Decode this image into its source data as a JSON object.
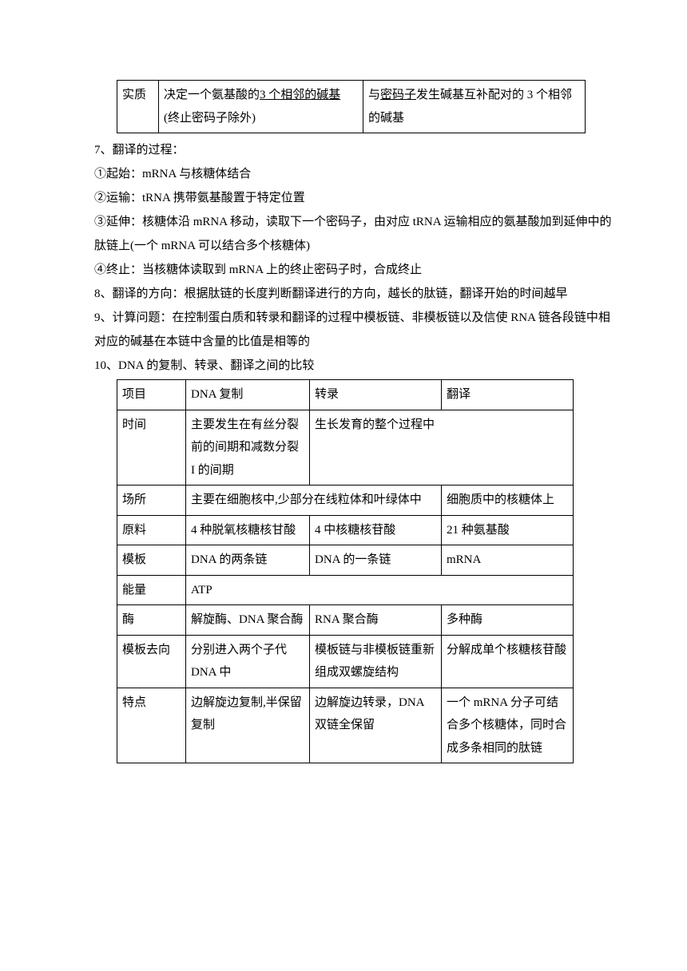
{
  "table1": {
    "col1": "实质",
    "col2_a": "决定一个氨基酸的",
    "col2_u": "3 个相邻的碱基",
    "col2_b": "(终止密码子除外)",
    "col3_a": "与",
    "col3_u": "密码子",
    "col3_b": "发生碱基互补配对的 3 个相邻的碱基"
  },
  "p7": "7、翻译的过程：",
  "p7_1": "①起始：mRNA 与核糖体结合",
  "p7_2": "②运输：tRNA 携带氨基酸置于特定位置",
  "p7_3": "③延伸：核糖体沿 mRNA 移动，读取下一个密码子，由对应 tRNA 运输相应的氨基酸加到延伸中的肽链上(一个 mRNA 可以结合多个核糖体)",
  "p7_4": "④终止：当核糖体读取到 mRNA 上的终止密码子时，合成终止",
  "p8": "8、翻译的方向：根据肽链的长度判断翻译进行的方向，越长的肽链，翻译开始的时间越早",
  "p9": "9、计算问题：在控制蛋白质和转录和翻译的过程中模板链、非模板链以及信使 RNA 链各段链中相对应的碱基在本链中含量的比值是相等的",
  "p10": "10、DNA 的复制、转录、翻译之间的比较",
  "table2": {
    "h1": "项目",
    "h2": "DNA 复制",
    "h3": "转录",
    "h4": "翻译",
    "r1c1": "时间",
    "r1c2": "主要发生在有丝分裂前的间期和减数分裂 I 的间期",
    "r1c34": "生长发育的整个过程中",
    "r2c1": "场所",
    "r2c23": "主要在细胞核中,少部分在线粒体和叶绿体中",
    "r2c4": "细胞质中的核糖体上",
    "r3c1": "原料",
    "r3c2": "4 种脱氧核糖核甘酸",
    "r3c3": "4 中核糖核苷酸",
    "r3c4": "21 种氨基酸",
    "r4c1": "模板",
    "r4c2": "DNA 的两条链",
    "r4c3": "DNA 的一条链",
    "r4c4": "mRNA",
    "r5c1": "能量",
    "r5c234": "ATP",
    "r6c1": "酶",
    "r6c2": "解旋酶、DNA 聚合酶",
    "r6c3": "RNA 聚合酶",
    "r6c4": "多种酶",
    "r7c1": "模板去向",
    "r7c2": "分别进入两个子代 DNA 中",
    "r7c3": "模板链与非模板链重新组成双螺旋结构",
    "r7c4": "分解成单个核糖核苷酸",
    "r8c1": "特点",
    "r8c2": "边解旋边复制,半保留复制",
    "r8c3": "边解旋边转录，DNA 双链全保留",
    "r8c4": "一个 mRNA 分子可结合多个核糖体，同时合成多条相同的肽链"
  }
}
